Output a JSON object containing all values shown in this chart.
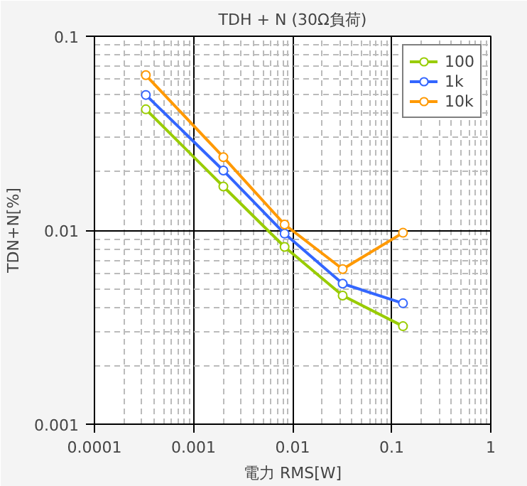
{
  "chart_data": {
    "type": "line",
    "title": "TDH + N (30Ω負荷)",
    "xlabel": "電力 RMS[W]",
    "ylabel": "TDN+N[%]",
    "log": "xy",
    "xlim": [
      0.0001,
      1
    ],
    "ylim": [
      0.001,
      0.1
    ],
    "xticks": [
      0.0001,
      0.001,
      0.01,
      0.1,
      1
    ],
    "yticks": [
      0.001,
      0.01,
      0.1
    ],
    "grid": true,
    "legend": "top right",
    "marker": "circle",
    "line_style": "solid",
    "x": [
      0.00033,
      0.002,
      0.0083,
      0.032,
      0.13
    ],
    "series": [
      {
        "name": "100",
        "color": "#99cc00",
        "values": [
          0.042,
          0.0168,
          0.0082,
          0.0046,
          0.0032
        ]
      },
      {
        "name": "1k",
        "color": "#3366ff",
        "values": [
          0.0498,
          0.0203,
          0.0096,
          0.0053,
          0.0042
        ]
      },
      {
        "name": "10k",
        "color": "#ff9900",
        "values": [
          0.063,
          0.0238,
          0.0107,
          0.0063,
          0.0097
        ]
      }
    ]
  }
}
